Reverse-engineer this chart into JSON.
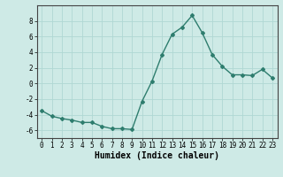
{
  "x": [
    0,
    1,
    2,
    3,
    4,
    5,
    6,
    7,
    8,
    9,
    10,
    11,
    12,
    13,
    14,
    15,
    16,
    17,
    18,
    19,
    20,
    21,
    22,
    23
  ],
  "y": [
    -3.5,
    -4.2,
    -4.5,
    -4.7,
    -5.0,
    -5.0,
    -5.5,
    -5.8,
    -5.8,
    -5.9,
    -2.3,
    0.3,
    3.7,
    6.3,
    7.2,
    8.7,
    6.5,
    3.7,
    2.2,
    1.1,
    1.1,
    1.0,
    1.8,
    0.7
  ],
  "line_color": "#2e7d6e",
  "marker": "D",
  "marker_size": 2.0,
  "xlabel": "Humidex (Indice chaleur)",
  "xlim": [
    -0.5,
    23.5
  ],
  "ylim": [
    -7,
    10
  ],
  "yticks": [
    -6,
    -4,
    -2,
    0,
    2,
    4,
    6,
    8
  ],
  "xticks": [
    0,
    1,
    2,
    3,
    4,
    5,
    6,
    7,
    8,
    9,
    10,
    11,
    12,
    13,
    14,
    15,
    16,
    17,
    18,
    19,
    20,
    21,
    22,
    23
  ],
  "bg_color": "#ceeae6",
  "grid_color": "#b0d8d3",
  "tick_fontsize": 5.5,
  "label_fontsize": 7,
  "line_width": 1.0
}
